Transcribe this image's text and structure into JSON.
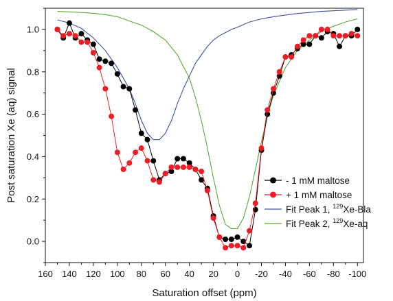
{
  "chart_data": {
    "type": "line",
    "xlabel": "Saturation offset (ppm)",
    "ylabel": "Post saturation Xe (aq) signal",
    "xlim": [
      160,
      -105
    ],
    "ylim": [
      -0.1,
      1.1
    ],
    "x_ticks": [
      160,
      140,
      120,
      100,
      80,
      60,
      40,
      20,
      0,
      -20,
      -40,
      -60,
      -80,
      -100
    ],
    "x_tick_labels": [
      "160",
      "140",
      "120",
      "100",
      "80",
      "60",
      "40",
      "20",
      "0",
      "-20",
      "-40",
      "-60",
      "-80",
      "-100"
    ],
    "y_ticks": [
      0.0,
      0.2,
      0.4,
      0.6,
      0.8,
      1.0
    ],
    "y_tick_labels": [
      "0.0",
      "0.2",
      "0.4",
      "0.6",
      "0.8",
      "1.0"
    ],
    "x_axis_reversed": true,
    "grid": false,
    "legend_position": "lower-right",
    "series": [
      {
        "name": "- 1 mM maltose",
        "kind": "line+markers",
        "color": "#000000",
        "x": [
          150,
          145,
          140,
          135,
          130,
          125,
          120,
          115,
          110,
          105,
          100,
          95,
          90,
          85,
          80,
          75,
          70,
          65,
          60,
          55,
          50,
          45,
          40,
          35,
          30,
          25,
          20,
          15,
          10,
          5,
          0,
          -5,
          -10,
          -15,
          -20,
          -25,
          -30,
          -35,
          -40,
          -45,
          -50,
          -55,
          -60,
          -65,
          -70,
          -75,
          -80,
          -85,
          -90,
          -95,
          -100
        ],
        "y": [
          1.0,
          0.96,
          1.03,
          0.96,
          0.98,
          0.95,
          0.93,
          0.86,
          0.85,
          0.84,
          0.79,
          0.73,
          0.72,
          0.62,
          0.51,
          0.48,
          0.38,
          0.29,
          0.32,
          0.33,
          0.39,
          0.39,
          0.37,
          0.34,
          0.29,
          0.25,
          0.12,
          0.02,
          0.01,
          0.01,
          0.02,
          0.0,
          -0.02,
          0.15,
          0.43,
          0.6,
          0.7,
          0.78,
          0.87,
          0.88,
          0.91,
          0.93,
          0.93,
          0.97,
          0.96,
          0.99,
          0.98,
          0.92,
          0.97,
          0.97,
          1.0
        ]
      },
      {
        "name": "+ 1 mM maltose",
        "kind": "line+markers",
        "color": "#ee1c24",
        "x": [
          150,
          145,
          140,
          135,
          130,
          125,
          120,
          115,
          110,
          105,
          100,
          95,
          90,
          85,
          80,
          75,
          70,
          65,
          60,
          55,
          50,
          45,
          40,
          35,
          30,
          25,
          20,
          15,
          10,
          5,
          0,
          -5,
          -10,
          -15,
          -20,
          -25,
          -30,
          -35,
          -40,
          -45,
          -50,
          -55,
          -60,
          -65,
          -70,
          -75,
          -80,
          -85,
          -90,
          -95,
          -100
        ],
        "y": [
          1.0,
          0.97,
          0.98,
          0.97,
          0.94,
          0.94,
          0.89,
          0.82,
          0.72,
          0.59,
          0.42,
          0.34,
          0.37,
          0.42,
          0.44,
          0.38,
          0.29,
          0.28,
          0.32,
          0.35,
          0.35,
          0.35,
          0.35,
          0.34,
          0.33,
          0.24,
          0.11,
          0.02,
          -0.03,
          -0.02,
          -0.02,
          -0.03,
          0.05,
          0.18,
          0.44,
          0.62,
          0.72,
          0.8,
          0.87,
          0.87,
          0.92,
          0.95,
          0.97,
          0.97,
          1.0,
          1.0,
          0.97,
          0.97,
          0.97,
          0.98,
          0.97
        ]
      },
      {
        "name": "Fit Peak 1, 129Xe-Bla",
        "legend_label": "Fit Peak 1, ",
        "legend_sup": "129",
        "legend_suffix": "Xe-Bla",
        "kind": "line",
        "color": "#3d4fa3",
        "x": [
          150,
          140,
          130,
          120,
          110,
          100,
          90,
          85,
          80,
          75,
          70,
          65,
          60,
          55,
          50,
          45,
          40,
          35,
          30,
          25,
          20,
          15,
          10,
          5,
          0,
          -10,
          -20,
          -30,
          -40,
          -50,
          -60,
          -70,
          -80,
          -90,
          -100
        ],
        "y": [
          1.045,
          1.03,
          1.005,
          0.96,
          0.9,
          0.82,
          0.72,
          0.65,
          0.57,
          0.51,
          0.48,
          0.48,
          0.51,
          0.57,
          0.65,
          0.72,
          0.78,
          0.84,
          0.88,
          0.92,
          0.95,
          0.97,
          0.985,
          1.0,
          1.01,
          1.035,
          1.05,
          1.06,
          1.068,
          1.075,
          1.08,
          1.085,
          1.088,
          1.091,
          1.094
        ]
      },
      {
        "name": "Fit Peak 2, 129Xe-aq",
        "legend_label": "Fit Peak 2, ",
        "legend_sup": "129",
        "legend_suffix": "Xe-aq",
        "kind": "line",
        "color": "#5aa832",
        "x": [
          150,
          140,
          130,
          120,
          110,
          100,
          90,
          80,
          70,
          60,
          50,
          40,
          35,
          30,
          25,
          20,
          15,
          10,
          5,
          0,
          -5,
          -10,
          -15,
          -20,
          -25,
          -30,
          -40,
          -50,
          -60,
          -70,
          -80,
          -90,
          -100
        ],
        "y": [
          1.085,
          1.083,
          1.08,
          1.076,
          1.07,
          1.06,
          1.04,
          1.02,
          0.99,
          0.95,
          0.88,
          0.77,
          0.68,
          0.57,
          0.44,
          0.3,
          0.17,
          0.08,
          0.06,
          0.06,
          0.11,
          0.21,
          0.34,
          0.47,
          0.59,
          0.69,
          0.82,
          0.9,
          0.95,
          0.99,
          1.015,
          1.035,
          1.05
        ]
      }
    ]
  }
}
